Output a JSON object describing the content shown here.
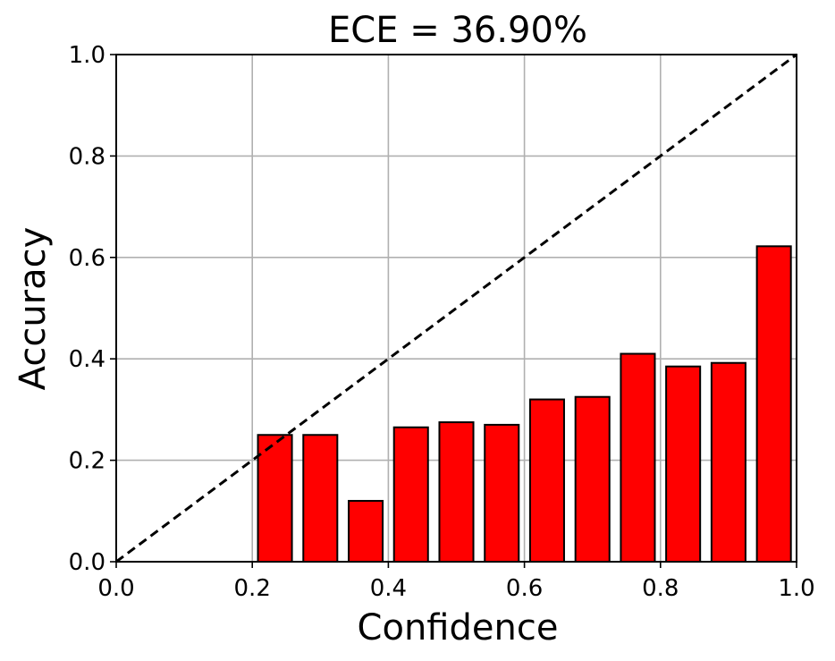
{
  "chart_data": {
    "type": "bar",
    "title": "ECE = 36.90%",
    "xlabel": "Confidence",
    "ylabel": "Accuracy",
    "xlim": [
      0.0,
      1.0
    ],
    "ylim": [
      0.0,
      1.0
    ],
    "xticks": [
      "0.0",
      "0.2",
      "0.4",
      "0.6",
      "0.8",
      "1.0"
    ],
    "yticks": [
      "0.0",
      "0.2",
      "0.4",
      "0.6",
      "0.8",
      "1.0"
    ],
    "grid": true,
    "bin_width": 0.0667,
    "bar_width": 0.05,
    "bins": [
      {
        "center": 0.0333,
        "accuracy": 0.0
      },
      {
        "center": 0.1,
        "accuracy": 0.0
      },
      {
        "center": 0.1667,
        "accuracy": 0.0
      },
      {
        "center": 0.2333,
        "accuracy": 0.25
      },
      {
        "center": 0.3,
        "accuracy": 0.25
      },
      {
        "center": 0.3667,
        "accuracy": 0.12
      },
      {
        "center": 0.4333,
        "accuracy": 0.265
      },
      {
        "center": 0.5,
        "accuracy": 0.275
      },
      {
        "center": 0.5667,
        "accuracy": 0.27
      },
      {
        "center": 0.6333,
        "accuracy": 0.32
      },
      {
        "center": 0.7,
        "accuracy": 0.325
      },
      {
        "center": 0.7667,
        "accuracy": 0.41
      },
      {
        "center": 0.8333,
        "accuracy": 0.385
      },
      {
        "center": 0.9,
        "accuracy": 0.392
      },
      {
        "center": 0.9667,
        "accuracy": 0.622
      }
    ],
    "reference_line": {
      "style": "dashed",
      "from": [
        0.0,
        0.0
      ],
      "to": [
        1.0,
        1.0
      ],
      "color": "#000000"
    },
    "colors": {
      "bar_fill": "#ff0000",
      "bar_edge": "#000000",
      "grid": "#b0b0b0"
    }
  }
}
